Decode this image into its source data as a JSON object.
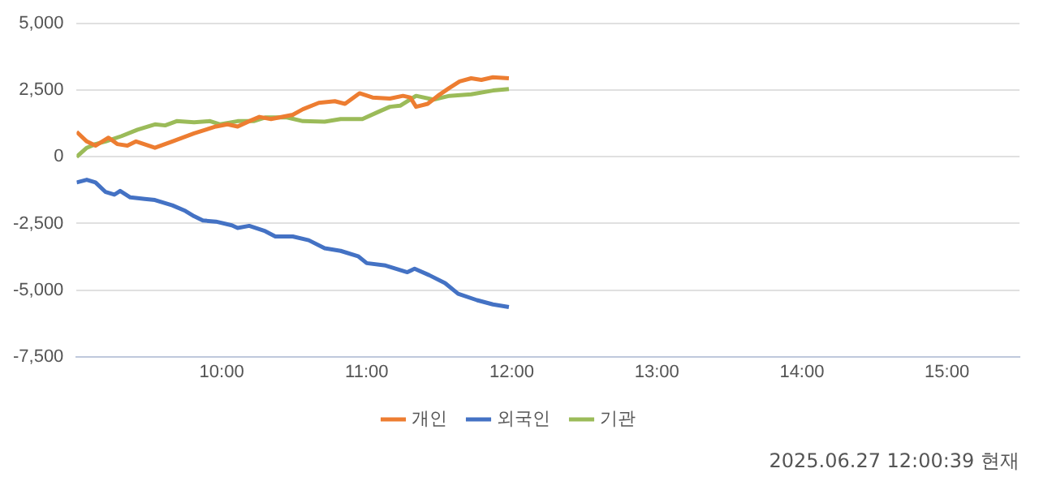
{
  "chart_data": {
    "type": "line",
    "xlim": [
      9,
      15.5
    ],
    "xticks": [
      {
        "value": 10,
        "label": "10:00"
      },
      {
        "value": 11,
        "label": "11:00"
      },
      {
        "value": 12,
        "label": "12:00"
      },
      {
        "value": 13,
        "label": "13:00"
      },
      {
        "value": 14,
        "label": "14:00"
      },
      {
        "value": 15,
        "label": "15:00"
      }
    ],
    "ylim": [
      -7500,
      5000
    ],
    "yticks": [
      {
        "value": -7500,
        "label": "-7,500"
      },
      {
        "value": -5000,
        "label": "-5,000"
      },
      {
        "value": -2500,
        "label": "-2,500"
      },
      {
        "value": 0,
        "label": "0"
      },
      {
        "value": 2500,
        "label": "2,500"
      },
      {
        "value": 5000,
        "label": "5,000"
      }
    ],
    "grid": "y",
    "legend": "bottom",
    "marker": "none",
    "line_style": "solid",
    "annotations": [
      "2025.06.27 12:00:39 현재"
    ],
    "series": [
      {
        "name": "개인",
        "color": "#ed7d31",
        "x": [
          9.0,
          9.07,
          9.13,
          9.22,
          9.28,
          9.35,
          9.41,
          9.54,
          9.66,
          9.81,
          9.89,
          9.96,
          10.04,
          10.11,
          10.19,
          10.26,
          10.34,
          10.49,
          10.56,
          10.67,
          10.78,
          10.85,
          10.95,
          11.04,
          11.16,
          11.25,
          11.3,
          11.34,
          11.42,
          11.49,
          11.57,
          11.64,
          11.72,
          11.79,
          11.87,
          11.98
        ],
        "values": [
          940,
          580,
          420,
          720,
          480,
          420,
          580,
          340,
          580,
          880,
          1020,
          1140,
          1220,
          1140,
          1340,
          1500,
          1420,
          1580,
          1790,
          2030,
          2090,
          1990,
          2390,
          2230,
          2190,
          2290,
          2230,
          1880,
          1990,
          2290,
          2590,
          2830,
          2950,
          2890,
          2990,
          2950
        ]
      },
      {
        "name": "외국인",
        "color": "#4472c4",
        "x": [
          9.0,
          9.07,
          9.13,
          9.2,
          9.26,
          9.3,
          9.37,
          9.47,
          9.54,
          9.66,
          9.75,
          9.81,
          9.87,
          9.96,
          10.07,
          10.11,
          10.19,
          10.3,
          10.37,
          10.49,
          10.6,
          10.71,
          10.82,
          10.94,
          11.0,
          11.13,
          11.28,
          11.33,
          11.43,
          11.54,
          11.63,
          11.76,
          11.87,
          11.98
        ],
        "values": [
          -960,
          -860,
          -960,
          -1320,
          -1420,
          -1280,
          -1520,
          -1580,
          -1620,
          -1820,
          -2030,
          -2230,
          -2390,
          -2430,
          -2570,
          -2670,
          -2590,
          -2790,
          -2990,
          -2990,
          -3130,
          -3430,
          -3530,
          -3730,
          -3990,
          -4080,
          -4330,
          -4200,
          -4440,
          -4740,
          -5140,
          -5380,
          -5540,
          -5640
        ]
      },
      {
        "name": "기관",
        "color": "#9bbb59",
        "x": [
          9.0,
          9.07,
          9.13,
          9.2,
          9.31,
          9.42,
          9.54,
          9.61,
          9.69,
          9.81,
          9.92,
          9.99,
          10.11,
          10.22,
          10.3,
          10.45,
          10.56,
          10.71,
          10.82,
          10.97,
          11.08,
          11.16,
          11.23,
          11.34,
          11.46,
          11.57,
          11.72,
          11.87,
          11.98
        ],
        "values": [
          0,
          340,
          480,
          580,
          780,
          1020,
          1220,
          1180,
          1340,
          1300,
          1340,
          1220,
          1340,
          1340,
          1480,
          1480,
          1340,
          1320,
          1420,
          1420,
          1690,
          1880,
          1920,
          2290,
          2150,
          2290,
          2350,
          2490,
          2550
        ]
      }
    ]
  }
}
